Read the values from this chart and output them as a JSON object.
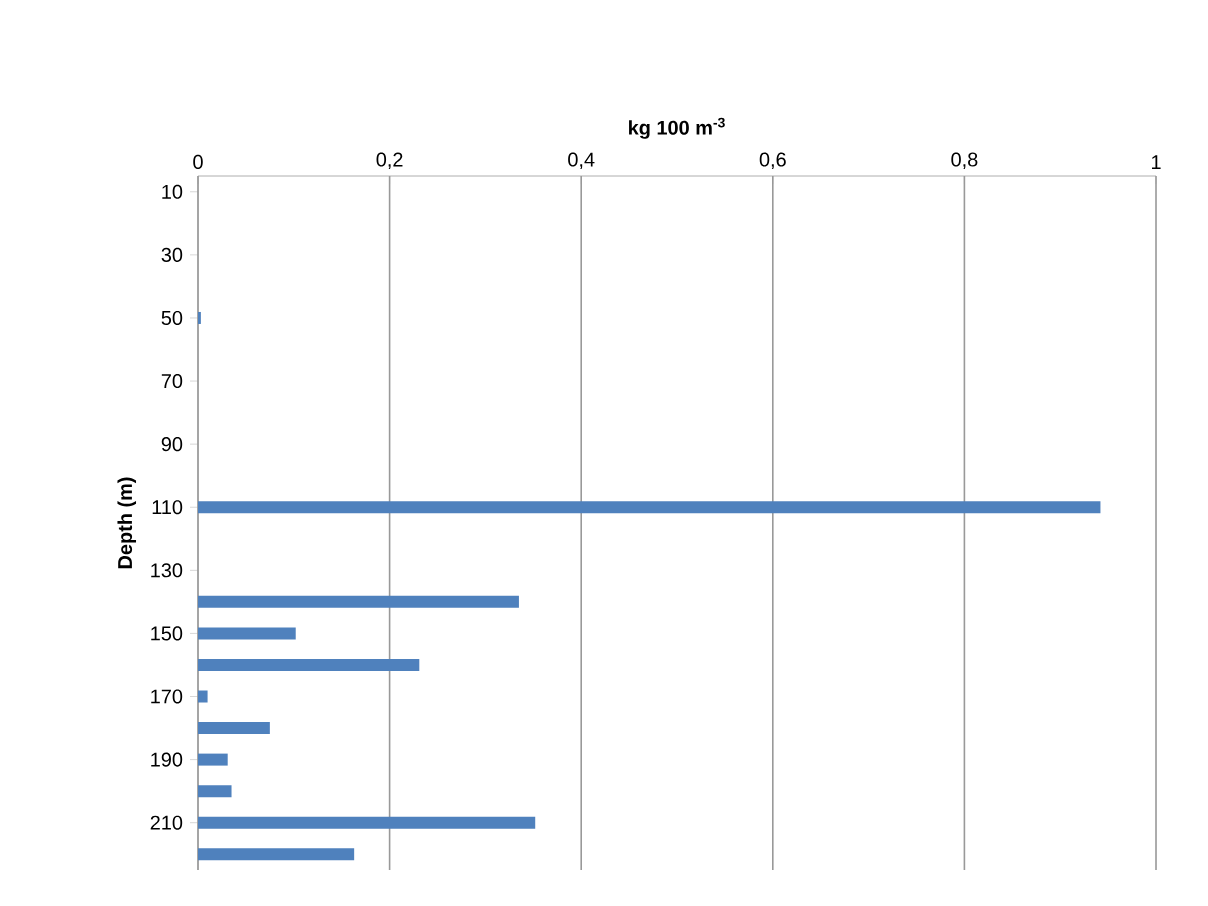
{
  "chart_data": {
    "type": "bar",
    "orientation": "horizontal",
    "xlabel": "kg 100 m$^{-3}$",
    "ylabel": "Depth (m)",
    "categories": [
      "10",
      null,
      "30",
      null,
      "50",
      null,
      "70",
      null,
      "90",
      null,
      "110",
      null,
      "130",
      null,
      "150",
      null,
      "170",
      null,
      "190",
      null,
      "210",
      null
    ],
    "values": [
      0,
      0,
      0,
      0,
      0.003,
      0,
      0,
      0,
      0,
      0,
      0.942,
      0,
      0,
      0.335,
      0.102,
      0.231,
      0.01,
      0.075,
      0.031,
      0.035,
      0.352,
      0.163
    ],
    "color": "#4f81bd",
    "xlim": [
      0,
      1
    ],
    "xticks": [
      0,
      {
        "value": 0.2,
        "label": "0,2"
      },
      {
        "value": 0.4,
        "label": "0,4"
      },
      {
        "value": 0.6,
        "label": "0,6"
      },
      {
        "value": 0.8,
        "label": "0,8"
      },
      1
    ],
    "grid": "x"
  }
}
